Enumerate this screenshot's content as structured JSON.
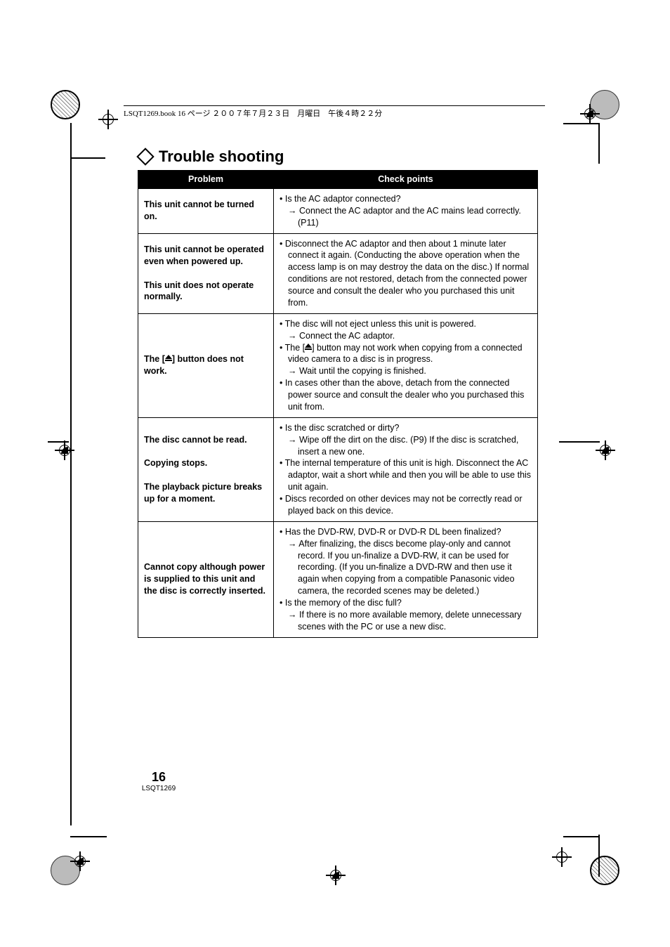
{
  "header": {
    "text": "LSQT1269.book  16 ページ  ２００７年７月２３日　月曜日　午後４時２２分"
  },
  "title": "Trouble shooting",
  "table": {
    "headers": {
      "problem": "Problem",
      "check": "Check points"
    },
    "rows": [
      {
        "problem": "This unit cannot be turned on.",
        "check": [
          {
            "t": "bullet",
            "text": "Is the AC adaptor connected?"
          },
          {
            "t": "arrow",
            "text": "Connect the AC adaptor and the AC mains lead correctly. (P11)"
          }
        ]
      },
      {
        "problem": "This unit cannot be operated even when powered up.\n\nThis unit does not operate normally.",
        "check": [
          {
            "t": "bullet",
            "text": "Disconnect the AC adaptor and then about 1 minute later connect it again. (Conducting the above operation when the access lamp is on may destroy the data on the disc.) If normal conditions are not restored, detach from the connected power source and consult the dealer who you purchased this unit from."
          }
        ]
      },
      {
        "problem_pre": "The [",
        "problem_post": "] button does not work.",
        "eject": true,
        "check": [
          {
            "t": "bullet",
            "text": "The disc will not eject unless this unit is powered."
          },
          {
            "t": "arrow",
            "text": "Connect the AC adaptor."
          },
          {
            "t": "bullet_eject",
            "pre": "The [",
            "post": "] button may not work when copying from a connected video camera to a disc is in progress."
          },
          {
            "t": "arrow",
            "text": "Wait until the copying is finished."
          },
          {
            "t": "bullet",
            "text": "In cases other than the above, detach from the connected power source and consult the dealer who you purchased this unit from."
          }
        ]
      },
      {
        "problem": "The disc cannot be read.\n\nCopying stops.\n\nThe playback picture breaks up for a moment.",
        "check": [
          {
            "t": "bullet",
            "text": "Is the disc scratched or dirty?"
          },
          {
            "t": "arrow",
            "text": "Wipe off the dirt on the disc. (P9) If the disc is scratched, insert a new one."
          },
          {
            "t": "bullet",
            "text": "The internal temperature of this unit is high. Disconnect the AC adaptor, wait a short while and then you will be able to use this unit again."
          },
          {
            "t": "bullet",
            "text": "Discs recorded on other devices may not be correctly read or played back on this device."
          }
        ]
      },
      {
        "problem": "Cannot copy although power is supplied to this unit and the disc is correctly inserted.",
        "check": [
          {
            "t": "bullet",
            "text": "Has the DVD-RW, DVD-R or DVD-R DL been finalized?"
          },
          {
            "t": "arrow",
            "text": "After finalizing, the discs become play-only and cannot record. If you un-finalize a DVD-RW, it can be used for recording. (If you un-finalize a DVD-RW and then use it again when copying from a compatible Panasonic video camera, the recorded scenes may be deleted.)"
          },
          {
            "t": "bullet",
            "text": "Is the memory of the disc full?"
          },
          {
            "t": "arrow",
            "text": "If there is no more available memory, delete unnecessary scenes with the PC or use a new disc."
          }
        ]
      }
    ]
  },
  "footer": {
    "page": "16",
    "code": "LSQT1269"
  }
}
